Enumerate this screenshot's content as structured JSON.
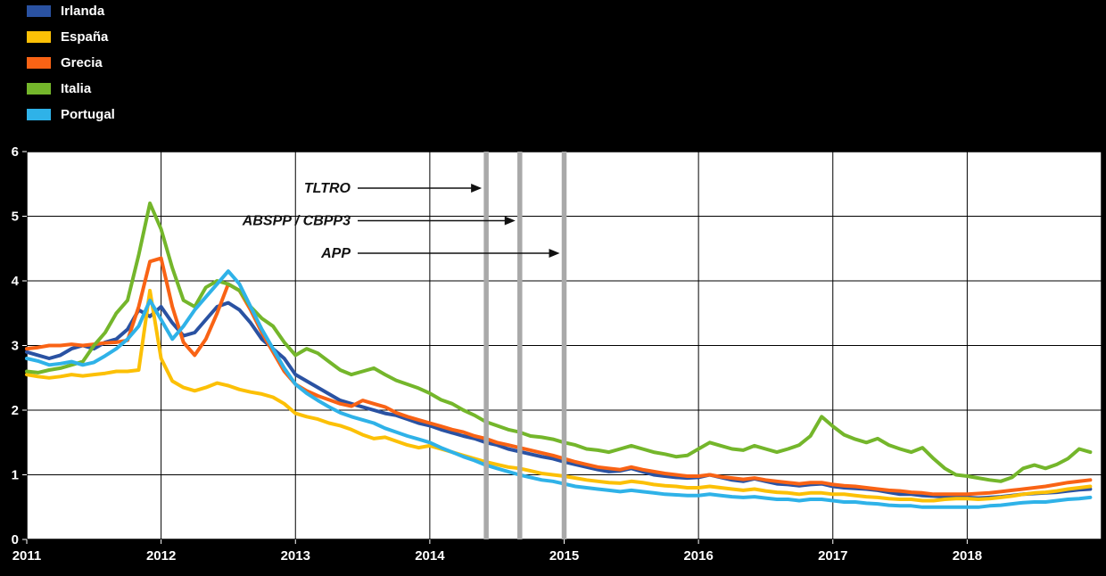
{
  "page": {
    "background": "#000000",
    "plot_background": "#ffffff"
  },
  "legend": {
    "items": [
      {
        "label": "Irlanda",
        "color": "#2a52a2"
      },
      {
        "label": "España",
        "color": "#fcc006"
      },
      {
        "label": "Grecia",
        "color": "#f96315"
      },
      {
        "label": "Italia",
        "color": "#74b62b"
      },
      {
        "label": "Portugal",
        "color": "#2fb2e8"
      }
    ]
  },
  "chart_data": {
    "type": "line",
    "title": "",
    "xlabel": "",
    "ylabel": "",
    "x_tick_labels": [
      "2011",
      "2012",
      "2013",
      "2014",
      "2015",
      "2016",
      "2017",
      "2018"
    ],
    "y_tick_labels": [
      "0",
      "1",
      "2",
      "3",
      "4",
      "5",
      "6"
    ],
    "ylim": [
      0,
      6
    ],
    "x_range_years": [
      2011,
      2019
    ],
    "grid": true,
    "frequency": "monthly",
    "x_monthly_start": "2011-01",
    "legend_position": "top-left",
    "event_line_color": "#a9a9a9",
    "events": [
      {
        "label": "TLTRO",
        "x_year": 2014.42
      },
      {
        "label": "ABSPP / CBPP3",
        "x_year": 2014.67
      },
      {
        "label": "APP",
        "x_year": 2015.0
      }
    ],
    "series": [
      {
        "name": "Irlanda",
        "color": "#2a52a2",
        "values": [
          2.9,
          2.85,
          2.8,
          2.85,
          2.95,
          3.0,
          2.95,
          3.05,
          3.1,
          3.25,
          3.55,
          3.45,
          3.6,
          3.35,
          3.15,
          3.2,
          3.4,
          3.6,
          3.66,
          3.55,
          3.35,
          3.1,
          2.95,
          2.8,
          2.55,
          2.45,
          2.35,
          2.25,
          2.15,
          2.1,
          2.05,
          2.0,
          1.95,
          1.92,
          1.86,
          1.8,
          1.76,
          1.7,
          1.65,
          1.6,
          1.56,
          1.5,
          1.46,
          1.4,
          1.36,
          1.32,
          1.28,
          1.25,
          1.2,
          1.16,
          1.12,
          1.08,
          1.05,
          1.06,
          1.1,
          1.05,
          1.0,
          0.98,
          0.96,
          0.95,
          0.96,
          1.0,
          0.96,
          0.92,
          0.9,
          0.94,
          0.9,
          0.86,
          0.85,
          0.83,
          0.85,
          0.86,
          0.82,
          0.8,
          0.79,
          0.78,
          0.76,
          0.73,
          0.7,
          0.7,
          0.68,
          0.67,
          0.66,
          0.65,
          0.65,
          0.64,
          0.65,
          0.66,
          0.68,
          0.7,
          0.71,
          0.72,
          0.73,
          0.75,
          0.77,
          0.78
        ]
      },
      {
        "name": "España",
        "color": "#fcc006",
        "values": [
          2.55,
          2.52,
          2.5,
          2.52,
          2.55,
          2.53,
          2.55,
          2.57,
          2.6,
          2.6,
          2.62,
          3.85,
          2.8,
          2.45,
          2.35,
          2.3,
          2.35,
          2.42,
          2.38,
          2.32,
          2.28,
          2.25,
          2.2,
          2.1,
          1.95,
          1.9,
          1.86,
          1.8,
          1.76,
          1.7,
          1.62,
          1.56,
          1.58,
          1.52,
          1.46,
          1.42,
          1.45,
          1.4,
          1.35,
          1.3,
          1.25,
          1.2,
          1.16,
          1.12,
          1.1,
          1.06,
          1.02,
          1.0,
          0.98,
          0.95,
          0.92,
          0.9,
          0.88,
          0.87,
          0.9,
          0.88,
          0.85,
          0.83,
          0.82,
          0.8,
          0.8,
          0.82,
          0.8,
          0.78,
          0.76,
          0.78,
          0.75,
          0.73,
          0.72,
          0.7,
          0.72,
          0.72,
          0.7,
          0.7,
          0.68,
          0.66,
          0.65,
          0.63,
          0.62,
          0.62,
          0.6,
          0.6,
          0.62,
          0.63,
          0.63,
          0.62,
          0.63,
          0.65,
          0.67,
          0.7,
          0.72,
          0.73,
          0.75,
          0.78,
          0.8,
          0.82
        ]
      },
      {
        "name": "Grecia",
        "color": "#f96315",
        "values": [
          2.95,
          2.97,
          3.0,
          3.0,
          3.02,
          3.0,
          3.02,
          3.04,
          3.05,
          3.08,
          3.6,
          4.3,
          4.35,
          3.6,
          3.05,
          2.85,
          3.1,
          3.5,
          3.95,
          3.85,
          3.55,
          3.2,
          2.9,
          2.6,
          2.4,
          2.3,
          2.22,
          2.16,
          2.1,
          2.06,
          2.15,
          2.1,
          2.05,
          1.96,
          1.9,
          1.85,
          1.8,
          1.75,
          1.7,
          1.66,
          1.6,
          1.56,
          1.5,
          1.46,
          1.42,
          1.38,
          1.34,
          1.3,
          1.25,
          1.2,
          1.16,
          1.12,
          1.1,
          1.08,
          1.12,
          1.08,
          1.05,
          1.02,
          1.0,
          0.98,
          0.98,
          1.0,
          0.97,
          0.95,
          0.93,
          0.95,
          0.92,
          0.9,
          0.88,
          0.86,
          0.88,
          0.88,
          0.85,
          0.83,
          0.82,
          0.8,
          0.78,
          0.76,
          0.75,
          0.73,
          0.72,
          0.7,
          0.7,
          0.7,
          0.7,
          0.71,
          0.72,
          0.74,
          0.76,
          0.78,
          0.8,
          0.82,
          0.85,
          0.88,
          0.9,
          0.92
        ]
      },
      {
        "name": "Italia",
        "color": "#74b62b",
        "values": [
          2.6,
          2.58,
          2.62,
          2.65,
          2.7,
          2.75,
          3.0,
          3.2,
          3.5,
          3.7,
          4.4,
          5.2,
          4.8,
          4.2,
          3.7,
          3.6,
          3.9,
          4.0,
          3.95,
          3.85,
          3.6,
          3.42,
          3.3,
          3.05,
          2.85,
          2.95,
          2.88,
          2.75,
          2.62,
          2.55,
          2.6,
          2.65,
          2.55,
          2.46,
          2.4,
          2.34,
          2.26,
          2.16,
          2.1,
          2.0,
          1.92,
          1.82,
          1.76,
          1.7,
          1.66,
          1.6,
          1.58,
          1.55,
          1.5,
          1.46,
          1.4,
          1.38,
          1.35,
          1.4,
          1.45,
          1.4,
          1.35,
          1.32,
          1.28,
          1.3,
          1.4,
          1.5,
          1.45,
          1.4,
          1.38,
          1.45,
          1.4,
          1.35,
          1.4,
          1.46,
          1.6,
          1.9,
          1.75,
          1.62,
          1.55,
          1.5,
          1.56,
          1.46,
          1.4,
          1.35,
          1.42,
          1.25,
          1.1,
          1.0,
          0.98,
          0.95,
          0.92,
          0.9,
          0.96,
          1.1,
          1.15,
          1.1,
          1.16,
          1.25,
          1.4,
          1.35
        ]
      },
      {
        "name": "Portugal",
        "color": "#2fb2e8",
        "values": [
          2.8,
          2.76,
          2.7,
          2.72,
          2.75,
          2.7,
          2.74,
          2.84,
          2.95,
          3.1,
          3.3,
          3.7,
          3.4,
          3.1,
          3.3,
          3.55,
          3.75,
          3.95,
          4.15,
          3.95,
          3.6,
          3.25,
          2.95,
          2.65,
          2.4,
          2.26,
          2.15,
          2.05,
          1.96,
          1.9,
          1.85,
          1.8,
          1.72,
          1.66,
          1.6,
          1.55,
          1.5,
          1.42,
          1.35,
          1.28,
          1.22,
          1.15,
          1.1,
          1.05,
          1.0,
          0.96,
          0.92,
          0.9,
          0.86,
          0.82,
          0.8,
          0.78,
          0.76,
          0.74,
          0.76,
          0.74,
          0.72,
          0.7,
          0.69,
          0.68,
          0.68,
          0.7,
          0.68,
          0.66,
          0.65,
          0.66,
          0.64,
          0.62,
          0.62,
          0.6,
          0.62,
          0.62,
          0.6,
          0.58,
          0.58,
          0.56,
          0.55,
          0.53,
          0.52,
          0.52,
          0.5,
          0.5,
          0.5,
          0.5,
          0.5,
          0.5,
          0.52,
          0.53,
          0.55,
          0.57,
          0.58,
          0.58,
          0.6,
          0.62,
          0.63,
          0.65
        ]
      }
    ]
  }
}
